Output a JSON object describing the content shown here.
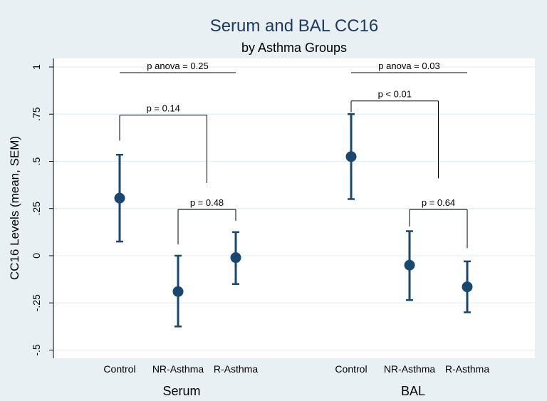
{
  "chart_data": {
    "type": "scatter",
    "title": "Serum and BAL CC16",
    "subtitle": "by Asthma Groups",
    "ylabel": "CC16 Levels (mean, SEM)",
    "ylim": [
      -0.55,
      1.05
    ],
    "yticks": [
      1,
      0.75,
      0.5,
      0.25,
      0,
      -0.25,
      -0.5
    ],
    "ytick_labels": [
      "1",
      ".75",
      ".5",
      ".25",
      "0",
      "-.25",
      "-.5"
    ],
    "grid": true,
    "accent_color": "#1a476f",
    "groups": [
      {
        "name": "Serum",
        "categories": [
          "Control",
          "NR-Asthma",
          "R-Asthma"
        ],
        "means": [
          0.305,
          -0.19,
          -0.01
        ],
        "lower": [
          0.075,
          -0.375,
          -0.15
        ],
        "upper": [
          0.535,
          0.0,
          0.125
        ],
        "annotations": [
          {
            "text": "p anova = 0.25",
            "kind": "line",
            "from": 0,
            "to": 2,
            "y": 0.97
          },
          {
            "text": "p = 0.14",
            "kind": "bracket",
            "from": 0,
            "to": 1.5,
            "y": 0.745,
            "left_end": 0.61,
            "right_end": 0.385
          },
          {
            "text": "p = 0.48",
            "kind": "bracket",
            "from": 1,
            "to": 2,
            "y": 0.245,
            "left_end": 0.06,
            "right_end": 0.185
          }
        ]
      },
      {
        "name": "BAL",
        "categories": [
          "Control",
          "NR-Asthma",
          "R-Asthma"
        ],
        "means": [
          0.525,
          -0.05,
          -0.165
        ],
        "lower": [
          0.3,
          -0.235,
          -0.3
        ],
        "upper": [
          0.75,
          0.13,
          -0.03
        ],
        "annotations": [
          {
            "text": "p anova = 0.03",
            "kind": "line",
            "from": 0,
            "to": 2,
            "y": 0.97
          },
          {
            "text": "p < 0.01",
            "kind": "bracket",
            "from": 0,
            "to": 1.5,
            "y": 0.82,
            "left_end": 0.76,
            "right_end": 0.41
          },
          {
            "text": "p = 0.64",
            "kind": "bracket",
            "from": 1,
            "to": 2,
            "y": 0.245,
            "left_end": 0.155,
            "right_end": 0.04
          }
        ]
      }
    ]
  }
}
